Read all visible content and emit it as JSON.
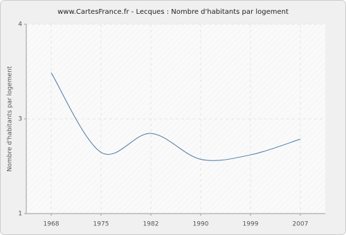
{
  "chart_data": {
    "type": "line",
    "title": "www.CartesFrance.fr - Lecques : Nombre d'habitants par logement",
    "y_label": "Nombre d'habitants par logement",
    "categories": [
      "1968",
      "1975",
      "1982",
      "1990",
      "1999",
      "2007"
    ],
    "series": [
      {
        "name": "Nombre d'habitants par logement",
        "color": "#4a78a8",
        "values": [
          3.23,
          1.97,
          2.27,
          1.86,
          1.93,
          2.18
        ]
      }
    ],
    "ylim": [
      1,
      4
    ],
    "yticks": [
      1,
      {
        "value": 2.5,
        "label": "3"
      },
      4
    ],
    "grid": true,
    "smooth": true
  }
}
